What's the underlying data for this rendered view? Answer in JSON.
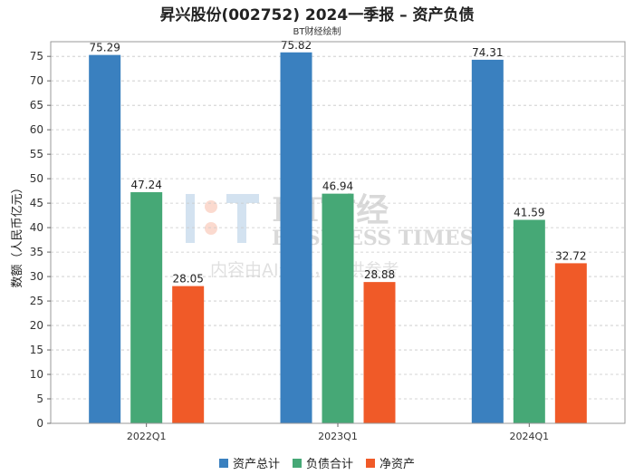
{
  "header": {
    "title": "昇兴股份(002752) 2024一季报 – 资产负债",
    "subtitle": "BT财经绘制"
  },
  "watermark": {
    "brand": "BT财经",
    "english": "BUSINESS TIMES",
    "notice": "内容由AI生成，仅供参考"
  },
  "chart_data": {
    "type": "bar",
    "title": "昇兴股份(002752) 2024一季报 – 资产负债",
    "subtitle": "BT财经绘制",
    "xlabel": "",
    "ylabel": "数额（人民币亿元）",
    "ylim": [
      0,
      78
    ],
    "yticks": [
      0,
      5,
      10,
      15,
      20,
      25,
      30,
      35,
      40,
      45,
      50,
      55,
      60,
      65,
      70,
      75
    ],
    "grid": true,
    "legend_position": "bottom",
    "categories": [
      "2022Q1",
      "2023Q1",
      "2024Q1"
    ],
    "series": [
      {
        "name": "资产总计",
        "color": "#3a80bf",
        "values": [
          75.29,
          75.82,
          74.31
        ]
      },
      {
        "name": "负债合计",
        "color": "#46a876",
        "values": [
          47.24,
          46.94,
          41.59
        ]
      },
      {
        "name": "净资产",
        "color": "#f05a28",
        "values": [
          28.05,
          28.88,
          32.72
        ]
      }
    ]
  }
}
